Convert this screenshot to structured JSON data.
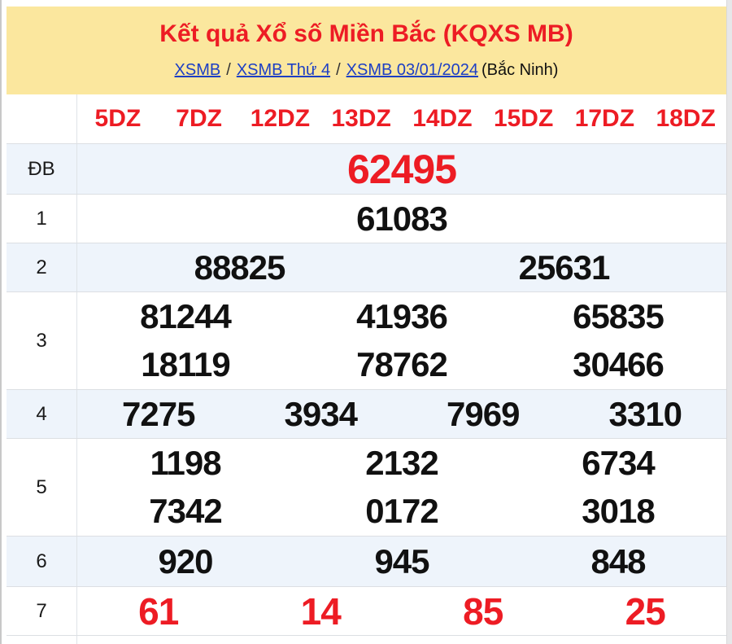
{
  "colors": {
    "banner_bg": "#fbe79e",
    "accent_red": "#ed1c24",
    "link_blue": "#1d3fc4",
    "zebra_row_bg": "#eef4fb",
    "number_black": "#111111"
  },
  "header": {
    "title": "Kết quả Xổ số Miền Bắc (KQXS MB)",
    "breadcrumb": {
      "links": [
        "XSMB",
        "XSMB Thứ 4",
        "XSMB 03/01/2024"
      ],
      "separator": "/",
      "location": "(Bắc Ninh)"
    }
  },
  "table": {
    "column_headers": [
      "5DZ",
      "7DZ",
      "12DZ",
      "13DZ",
      "14DZ",
      "15DZ",
      "17DZ",
      "18DZ"
    ],
    "rows": [
      {
        "label": "ĐB",
        "style": "jackpot",
        "zebra": true,
        "lines": [
          [
            "62495"
          ]
        ]
      },
      {
        "label": "1",
        "style": "normal",
        "zebra": false,
        "lines": [
          [
            "61083"
          ]
        ]
      },
      {
        "label": "2",
        "style": "normal",
        "zebra": true,
        "lines": [
          [
            "88825",
            "25631"
          ]
        ]
      },
      {
        "label": "3",
        "style": "normal",
        "zebra": false,
        "lines": [
          [
            "81244",
            "41936",
            "65835"
          ],
          [
            "18119",
            "78762",
            "30466"
          ]
        ]
      },
      {
        "label": "4",
        "style": "normal",
        "zebra": true,
        "lines": [
          [
            "7275",
            "3934",
            "7969",
            "3310"
          ]
        ]
      },
      {
        "label": "5",
        "style": "normal",
        "zebra": false,
        "lines": [
          [
            "1198",
            "2132",
            "6734"
          ],
          [
            "7342",
            "0172",
            "3018"
          ]
        ]
      },
      {
        "label": "6",
        "style": "normal",
        "zebra": true,
        "lines": [
          [
            "920",
            "945",
            "848"
          ]
        ]
      },
      {
        "label": "7",
        "style": "tail",
        "zebra": false,
        "lines": [
          [
            "61",
            "14",
            "85",
            "25"
          ]
        ]
      }
    ]
  }
}
